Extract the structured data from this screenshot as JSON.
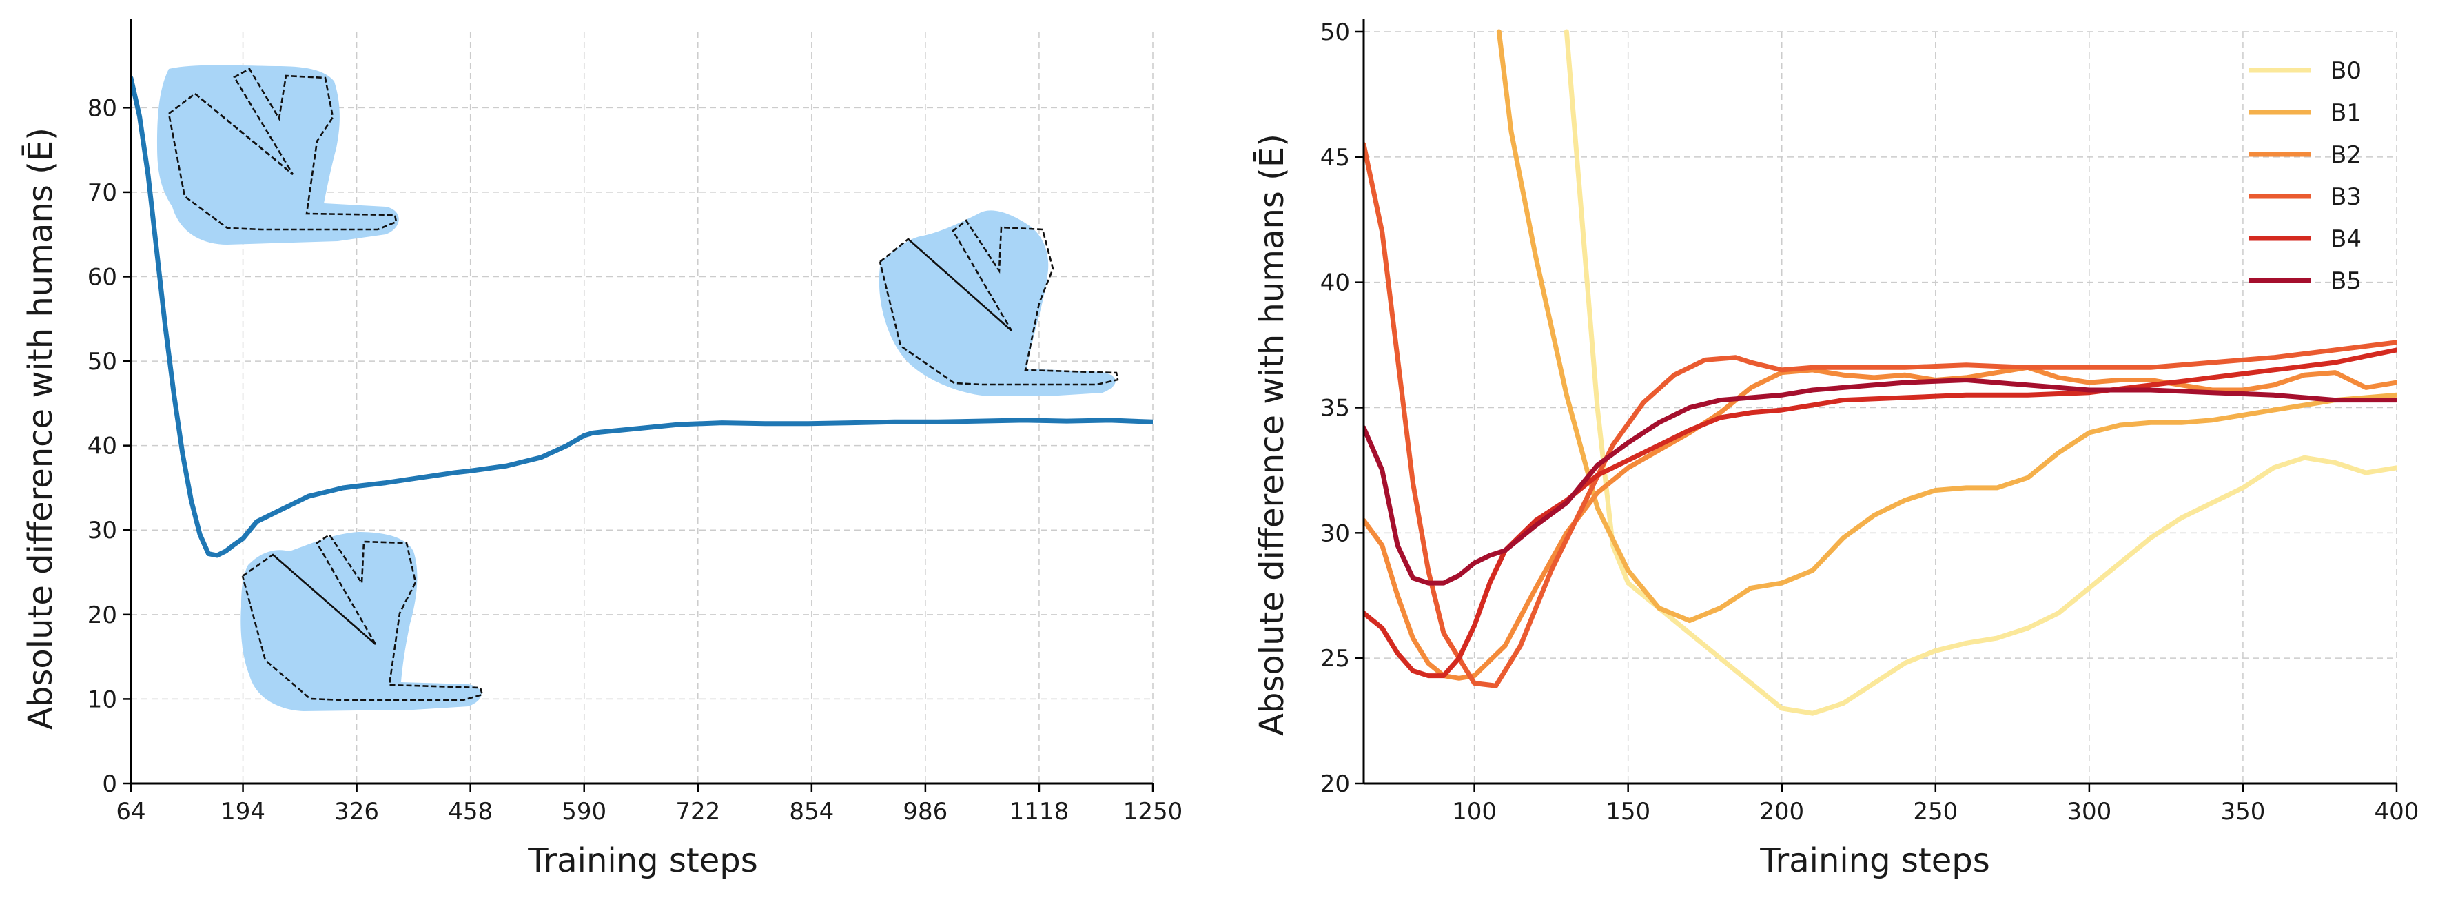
{
  "chart_data": [
    {
      "type": "line",
      "xlabel": "Training steps",
      "ylabel": "Absolute difference with humans (Ē)",
      "xlim": [
        64,
        1250
      ],
      "ylim": [
        0,
        89
      ],
      "xticks": [
        64,
        194,
        326,
        458,
        590,
        722,
        854,
        986,
        1118,
        1250
      ],
      "yticks": [
        0,
        10,
        20,
        30,
        40,
        50,
        60,
        70,
        80
      ],
      "grid": true,
      "color": "#1f77b4",
      "x": [
        64,
        74,
        84,
        94,
        104,
        114,
        124,
        134,
        144,
        154,
        164,
        174,
        184,
        194,
        210,
        230,
        250,
        270,
        290,
        310,
        326,
        360,
        400,
        440,
        458,
        500,
        540,
        570,
        590,
        600,
        610,
        620,
        650,
        700,
        750,
        800,
        850,
        900,
        950,
        1000,
        1050,
        1100,
        1150,
        1200,
        1250
      ],
      "y": [
        83.5,
        79,
        72,
        63,
        54,
        46,
        39,
        33.5,
        29.5,
        27.2,
        27,
        27.5,
        28.3,
        29,
        31,
        32,
        33,
        34,
        34.5,
        35,
        35.2,
        35.6,
        36.2,
        36.8,
        37,
        37.6,
        38.6,
        40,
        41.2,
        41.5,
        41.6,
        41.7,
        42,
        42.5,
        42.7,
        42.6,
        42.6,
        42.7,
        42.8,
        42.8,
        42.9,
        43,
        42.9,
        43,
        42.8
      ]
    },
    {
      "type": "line",
      "xlabel": "Training steps",
      "ylabel": "Absolute difference with humans (Ē)",
      "xlim": [
        64,
        400
      ],
      "ylim": [
        20,
        50
      ],
      "xticks": [
        100,
        150,
        200,
        250,
        300,
        350,
        400
      ],
      "yticks": [
        20,
        25,
        30,
        35,
        40,
        45,
        50
      ],
      "grid": true,
      "legend_position": "top-right",
      "series": [
        {
          "name": "B0",
          "color": "#fbe89a",
          "x": [
            130,
            135,
            140,
            145,
            150,
            155,
            160,
            170,
            180,
            190,
            200,
            210,
            220,
            230,
            240,
            250,
            260,
            270,
            280,
            290,
            300,
            310,
            320,
            330,
            340,
            350,
            360,
            370,
            380,
            390,
            400
          ],
          "y": [
            50,
            42.5,
            35,
            29.5,
            28,
            27.5,
            27,
            26,
            25,
            24,
            23,
            22.8,
            23.2,
            24,
            24.8,
            25.3,
            25.6,
            25.8,
            26.2,
            26.8,
            27.8,
            28.8,
            29.8,
            30.6,
            31.2,
            31.8,
            32.6,
            33,
            32.8,
            32.4,
            32.6
          ]
        },
        {
          "name": "B1",
          "color": "#f5b04b",
          "x": [
            108,
            112,
            120,
            130,
            140,
            150,
            160,
            170,
            180,
            190,
            200,
            210,
            220,
            230,
            240,
            250,
            260,
            270,
            280,
            290,
            300,
            310,
            320,
            330,
            340,
            350,
            360,
            370,
            380,
            390,
            400
          ],
          "y": [
            50,
            46,
            41,
            35.5,
            31,
            28.5,
            27,
            26.5,
            27,
            27.8,
            28,
            28.5,
            29.8,
            30.7,
            31.3,
            31.7,
            31.8,
            31.8,
            32.2,
            33.2,
            34,
            34.3,
            34.4,
            34.4,
            34.5,
            34.7,
            34.9,
            35.1,
            35.3,
            35.4,
            35.5
          ]
        },
        {
          "name": "B2",
          "color": "#f48a3a",
          "x": [
            64,
            70,
            75,
            80,
            85,
            90,
            95,
            100,
            110,
            120,
            130,
            140,
            150,
            160,
            170,
            180,
            190,
            200,
            210,
            220,
            230,
            240,
            250,
            260,
            270,
            280,
            290,
            300,
            310,
            320,
            330,
            340,
            350,
            360,
            370,
            380,
            390,
            400
          ],
          "y": [
            30.5,
            29.5,
            27.5,
            25.8,
            24.8,
            24.3,
            24.2,
            24.3,
            25.5,
            27.8,
            30,
            31.6,
            32.6,
            33.3,
            34,
            34.8,
            35.8,
            36.4,
            36.5,
            36.3,
            36.2,
            36.3,
            36.1,
            36.2,
            36.4,
            36.6,
            36.2,
            36,
            36.1,
            36.1,
            35.9,
            35.7,
            35.7,
            35.9,
            36.3,
            36.4,
            35.8,
            36
          ]
        },
        {
          "name": "B3",
          "color": "#ea5b30",
          "x": [
            64,
            70,
            75,
            80,
            85,
            90,
            95,
            100,
            107,
            115,
            125,
            135,
            145,
            155,
            165,
            175,
            185,
            190,
            200,
            210,
            220,
            240,
            260,
            280,
            300,
            320,
            340,
            360,
            380,
            400
          ],
          "y": [
            45.5,
            42,
            37,
            32,
            28.5,
            26,
            25,
            24,
            23.9,
            25.5,
            28.5,
            31,
            33.5,
            35.2,
            36.3,
            36.9,
            37,
            36.8,
            36.5,
            36.6,
            36.6,
            36.6,
            36.7,
            36.6,
            36.6,
            36.6,
            36.8,
            37,
            37.3,
            37.6
          ]
        },
        {
          "name": "B4",
          "color": "#d42a20",
          "x": [
            64,
            70,
            75,
            80,
            85,
            90,
            95,
            100,
            105,
            110,
            120,
            130,
            140,
            150,
            160,
            170,
            180,
            190,
            200,
            210,
            220,
            240,
            260,
            280,
            300,
            320,
            340,
            360,
            380,
            400
          ],
          "y": [
            26.8,
            26.2,
            25.2,
            24.5,
            24.3,
            24.3,
            25,
            26.3,
            28,
            29.3,
            30.5,
            31.3,
            32.3,
            32.9,
            33.5,
            34.1,
            34.6,
            34.8,
            34.9,
            35.1,
            35.3,
            35.4,
            35.5,
            35.5,
            35.6,
            35.9,
            36.2,
            36.5,
            36.8,
            37.3
          ]
        },
        {
          "name": "B5",
          "color": "#a50f2d",
          "x": [
            64,
            70,
            75,
            80,
            85,
            90,
            95,
            100,
            105,
            110,
            115,
            120,
            130,
            140,
            150,
            160,
            170,
            180,
            190,
            200,
            210,
            220,
            230,
            240,
            260,
            280,
            300,
            320,
            340,
            360,
            380,
            400
          ],
          "y": [
            34.2,
            32.5,
            29.5,
            28.2,
            28,
            28,
            28.3,
            28.8,
            29.1,
            29.3,
            29.8,
            30.3,
            31.2,
            32.7,
            33.6,
            34.4,
            35,
            35.3,
            35.4,
            35.5,
            35.7,
            35.8,
            35.9,
            36,
            36.1,
            35.9,
            35.7,
            35.7,
            35.6,
            35.5,
            35.3,
            35.3
          ]
        }
      ]
    }
  ]
}
